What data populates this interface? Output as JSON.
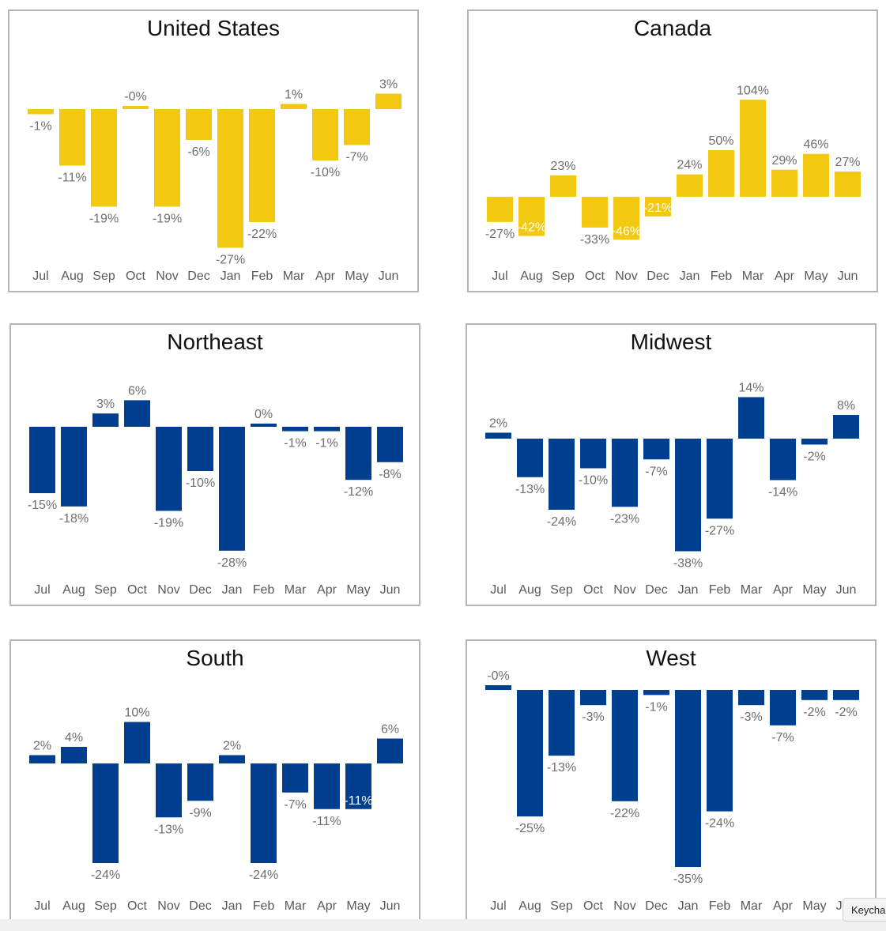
{
  "colors": {
    "gold": "#F2C811",
    "navy": "#003F8F"
  },
  "months": [
    "Jul",
    "Aug",
    "Sep",
    "Oct",
    "Nov",
    "Dec",
    "Jan",
    "Feb",
    "Mar",
    "Apr",
    "May",
    "Jun"
  ],
  "keychain_label": "Keycha",
  "chart_data": [
    {
      "type": "bar",
      "title": "United States",
      "color": "#F2C811",
      "categories": [
        "Jul",
        "Aug",
        "Sep",
        "Oct",
        "Nov",
        "Dec",
        "Jan",
        "Feb",
        "Mar",
        "Apr",
        "May",
        "Jun"
      ],
      "values": [
        -1,
        -11,
        -19,
        0,
        -19,
        -6,
        -27,
        -22,
        1,
        -10,
        -7,
        3
      ],
      "labels": [
        "-1%",
        "-11%",
        "-19%",
        "-0%",
        "-19%",
        "-6%",
        "-27%",
        "-22%",
        "1%",
        "-10%",
        "-7%",
        "3%"
      ],
      "inside_labels": []
    },
    {
      "type": "bar",
      "title": "Canada",
      "color": "#F2C811",
      "categories": [
        "Jul",
        "Aug",
        "Sep",
        "Oct",
        "Nov",
        "Dec",
        "Jan",
        "Feb",
        "Mar",
        "Apr",
        "May",
        "Jun"
      ],
      "values": [
        -27,
        -42,
        23,
        -33,
        -46,
        -21,
        24,
        50,
        104,
        29,
        46,
        27
      ],
      "labels": [
        "-27%",
        "-42%",
        "23%",
        "-33%",
        "-46%",
        "-21%",
        "24%",
        "50%",
        "104%",
        "29%",
        "46%",
        "27%"
      ],
      "inside_labels": [
        1,
        4,
        5
      ]
    },
    {
      "type": "bar",
      "title": "Northeast",
      "color": "#003F8F",
      "categories": [
        "Jul",
        "Aug",
        "Sep",
        "Oct",
        "Nov",
        "Dec",
        "Jan",
        "Feb",
        "Mar",
        "Apr",
        "May",
        "Jun"
      ],
      "values": [
        -15,
        -18,
        3,
        6,
        -19,
        -10,
        -28,
        0,
        -1,
        -1,
        -12,
        -8
      ],
      "labels": [
        "-15%",
        "-18%",
        "3%",
        "6%",
        "-19%",
        "-10%",
        "-28%",
        "0%",
        "-1%",
        "-1%",
        "-12%",
        "-8%"
      ],
      "inside_labels": []
    },
    {
      "type": "bar",
      "title": "Midwest",
      "color": "#003F8F",
      "categories": [
        "Jul",
        "Aug",
        "Sep",
        "Oct",
        "Nov",
        "Dec",
        "Jan",
        "Feb",
        "Mar",
        "Apr",
        "May",
        "Jun"
      ],
      "values": [
        2,
        -13,
        -24,
        -10,
        -23,
        -7,
        -38,
        -27,
        14,
        -14,
        -2,
        8
      ],
      "labels": [
        "2%",
        "-13%",
        "-24%",
        "-10%",
        "-23%",
        "-7%",
        "-38%",
        "-27%",
        "14%",
        "-14%",
        "-2%",
        "8%"
      ],
      "inside_labels": []
    },
    {
      "type": "bar",
      "title": "South",
      "color": "#003F8F",
      "categories": [
        "Jul",
        "Aug",
        "Sep",
        "Oct",
        "Nov",
        "Dec",
        "Jan",
        "Feb",
        "Mar",
        "Apr",
        "May",
        "Jun"
      ],
      "values": [
        2,
        4,
        -24,
        10,
        -13,
        -9,
        2,
        -24,
        -7,
        -11,
        -11,
        6
      ],
      "labels": [
        "2%",
        "4%",
        "-24%",
        "10%",
        "-13%",
        "-9%",
        "2%",
        "-24%",
        "-7%",
        "-11%",
        "-11%",
        "6%"
      ],
      "inside_labels": [
        10
      ]
    },
    {
      "type": "bar",
      "title": "West",
      "color": "#003F8F",
      "categories": [
        "Jul",
        "Aug",
        "Sep",
        "Oct",
        "Nov",
        "Dec",
        "Jan",
        "Feb",
        "Mar",
        "Apr",
        "May",
        "Jun"
      ],
      "values": [
        0,
        -25,
        -13,
        -3,
        -22,
        -1,
        -35,
        -24,
        -3,
        -7,
        -2,
        -2
      ],
      "labels": [
        "-0%",
        "-25%",
        "-13%",
        "-3%",
        "-22%",
        "-1%",
        "-35%",
        "-24%",
        "-3%",
        "-7%",
        "-2%",
        "-2%"
      ],
      "inside_labels": []
    }
  ]
}
